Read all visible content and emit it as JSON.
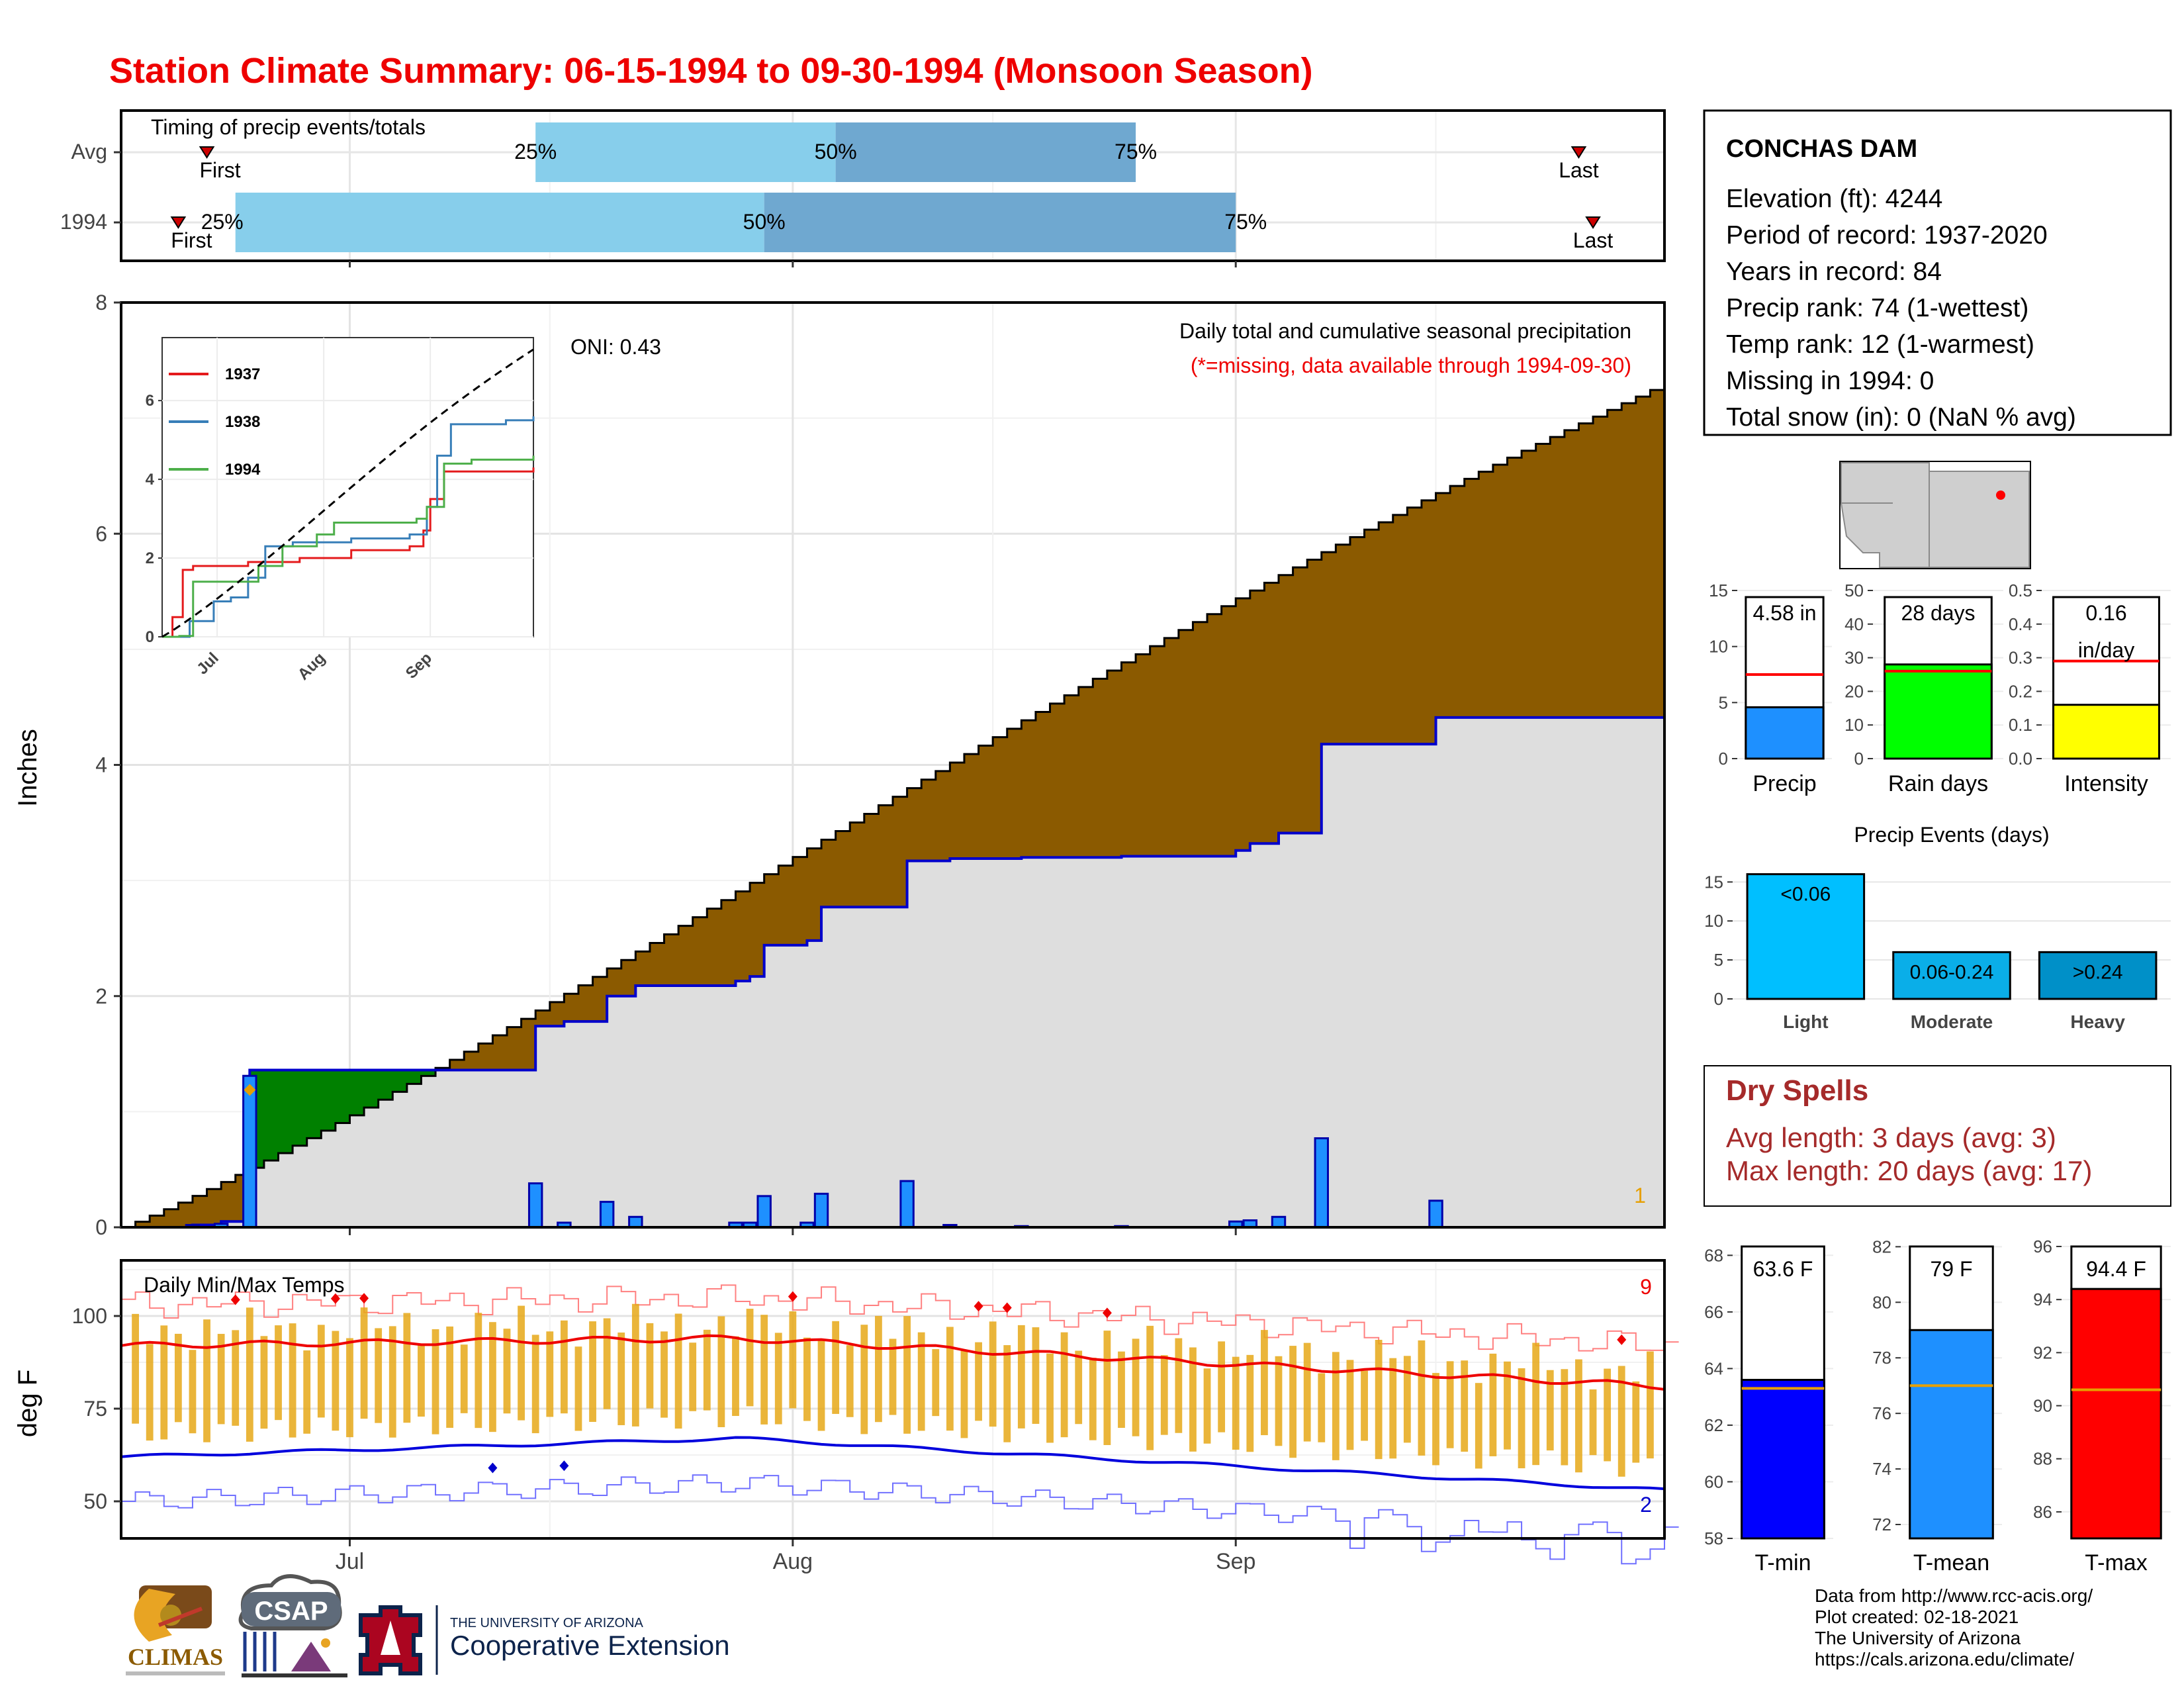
{
  "title": "Station Climate Summary: 06-15-1994 to 09-30-1994 (Monsoon Season)",
  "colors": {
    "title": "#ee0000",
    "brown": "#8b5a00",
    "gray_fill": "#dedede",
    "green": "#008000",
    "light_blue": "#87ceeb",
    "mid_blue": "#6fa8d0",
    "bar_blue": "#1e90ff",
    "navy": "#0000cc",
    "red": "#ff0000",
    "orange": "#e6a817",
    "dry_red": "#a52a2a"
  },
  "timing": {
    "label": "Timing of precip events/totals",
    "rows": [
      {
        "name": "Avg",
        "first": "First",
        "last": "Last",
        "q25": "25%",
        "q50": "50%",
        "q75": "75%",
        "first_date": "1994-06-21",
        "q25_date": "1994-07-14",
        "q50_date": "1994-08-04",
        "q75_date": "1994-08-25",
        "last_date": "1994-09-25"
      },
      {
        "name": "1994",
        "first": "First",
        "last": "Last",
        "q25": "25%",
        "q50": "50%",
        "q75": "75%",
        "first_date": "1994-06-19",
        "q25_date": "1994-06-23",
        "q50_date": "1994-07-30",
        "q75_date": "1994-09-01",
        "last_date": "1994-09-26"
      }
    ]
  },
  "station": {
    "name": "CONCHAS DAM",
    "lines": [
      "Elevation (ft): 4244",
      "Period of record: 1937-2020",
      "Years in record: 84",
      "Precip rank: 74 (1-wettest)",
      "Temp rank: 12 (1-warmest)",
      "Missing in 1994: 0",
      "Total snow (in): 0 (NaN % avg)"
    ]
  },
  "main_panel": {
    "ylabel": "Inches",
    "title": "Daily total and cumulative seasonal precipitation",
    "subtitle": "(*=missing, data available through 1994-09-30)",
    "oni": "ONI: 0.43",
    "corner_count": "1",
    "yticks": [
      "0",
      "2",
      "4",
      "6",
      "8"
    ],
    "xticks": [
      "Jul",
      "Aug",
      "Sep"
    ]
  },
  "inset": {
    "yticks": [
      "0",
      "2",
      "4",
      "6"
    ],
    "xticks": [
      "Jul",
      "Aug",
      "Sep"
    ],
    "legend": [
      "1937",
      "1938",
      "1994"
    ]
  },
  "summary_bars": [
    {
      "label": "Precip",
      "value_text": "4.58 in",
      "value": 4.58,
      "avg": 7.5,
      "ylim": [
        0,
        15
      ],
      "ticks": [
        "0",
        "5",
        "10",
        "15"
      ]
    },
    {
      "label": "Rain days",
      "value_text": "28 days",
      "value": 28,
      "avg": 26,
      "ylim": [
        0,
        50
      ],
      "ticks": [
        "0",
        "10",
        "20",
        "30",
        "40",
        "50"
      ]
    },
    {
      "label": "Intensity",
      "value_text": "0.16",
      "value_text2": "in/day",
      "value": 0.16,
      "avg": 0.29,
      "ylim": [
        0,
        0.5
      ],
      "ticks": [
        "0.0",
        "0.1",
        "0.2",
        "0.3",
        "0.4",
        "0.5"
      ]
    }
  ],
  "events": {
    "title": "Precip Events (days)",
    "ticks": [
      "0",
      "5",
      "10",
      "15"
    ],
    "bars": [
      {
        "label": "Light",
        "inner": "<0.06",
        "value": 16
      },
      {
        "label": "Moderate",
        "inner": "0.06-0.24",
        "value": 6
      },
      {
        "label": "Heavy",
        "inner": ">0.24",
        "value": 6
      }
    ]
  },
  "dry_spells": {
    "title": "Dry Spells",
    "avg_line": "Avg length: 3 days (avg: 3)",
    "max_line": "Max length: 20 days (avg: 17)"
  },
  "temp_panel": {
    "ylabel": "deg F",
    "title": "Daily Min/Max Temps",
    "yticks": [
      "50",
      "75",
      "100"
    ],
    "count_max": "9",
    "count_min": "2"
  },
  "temp_bars": [
    {
      "label": "T-min",
      "value_text": "63.6 F",
      "value": 63.6,
      "avg": 63.3,
      "ylim": [
        58,
        68.5
      ],
      "ticks": [
        "58",
        "60",
        "62",
        "64",
        "66",
        "68"
      ]
    },
    {
      "label": "T-mean",
      "value_text": "79 F",
      "value": 79,
      "avg": 77,
      "ylim": [
        71.5,
        82.2
      ],
      "ticks": [
        "72",
        "74",
        "76",
        "78",
        "80",
        "82"
      ]
    },
    {
      "label": "T-max",
      "value_text": "94.4 F",
      "value": 94.4,
      "avg": 90.6,
      "ylim": [
        85,
        96.2
      ],
      "ticks": [
        "86",
        "88",
        "90",
        "92",
        "94",
        "96"
      ]
    }
  ],
  "credits": [
    "Data from http://www.rcc-acis.org/",
    "Plot created: 02-18-2021",
    "The University of Arizona",
    "https://cals.arizona.edu/climate/"
  ],
  "logos": {
    "climas": "CLIMAS",
    "csap": "CSAP",
    "ua_small": "THE UNIVERSITY OF ARIZONA",
    "ua_big": "Cooperative Extension"
  },
  "chart_data": [
    {
      "type": "bar",
      "title": "Daily total and cumulative seasonal precipitation",
      "ylabel": "Inches",
      "ylim": [
        0,
        8
      ],
      "season_start": "1994-06-15",
      "daily_precip_1994": [
        {
          "date": "1994-06-20",
          "value": 0.02
        },
        {
          "date": "1994-06-22",
          "value": 0.03
        },
        {
          "date": "1994-06-24",
          "value": 1.31
        },
        {
          "date": "1994-07-14",
          "value": 0.38
        },
        {
          "date": "1994-07-16",
          "value": 0.04
        },
        {
          "date": "1994-07-19",
          "value": 0.22
        },
        {
          "date": "1994-07-21",
          "value": 0.09
        },
        {
          "date": "1994-07-28",
          "value": 0.04
        },
        {
          "date": "1994-07-29",
          "value": 0.04
        },
        {
          "date": "1994-07-30",
          "value": 0.27
        },
        {
          "date": "1994-08-02",
          "value": 0.04
        },
        {
          "date": "1994-08-03",
          "value": 0.29
        },
        {
          "date": "1994-08-09",
          "value": 0.4
        },
        {
          "date": "1994-08-12",
          "value": 0.02
        },
        {
          "date": "1994-08-17",
          "value": 0.01
        },
        {
          "date": "1994-08-24",
          "value": 0.01
        },
        {
          "date": "1994-09-01",
          "value": 0.05
        },
        {
          "date": "1994-09-02",
          "value": 0.06
        },
        {
          "date": "1994-09-04",
          "value": 0.09
        },
        {
          "date": "1994-09-07",
          "value": 0.77
        },
        {
          "date": "1994-09-15",
          "value": 0.23
        }
      ],
      "avg_cumulative_end": 7.3
    },
    {
      "type": "line",
      "title": "Daily Min/Max Temps",
      "ylabel": "deg F",
      "ylim": [
        40,
        115
      ],
      "avg_tmax_start": 92,
      "avg_tmax_mid": 94,
      "avg_tmax_end": 81,
      "avg_tmin_start": 62,
      "avg_tmin_mid": 67,
      "avg_tmin_end": 53
    }
  ]
}
